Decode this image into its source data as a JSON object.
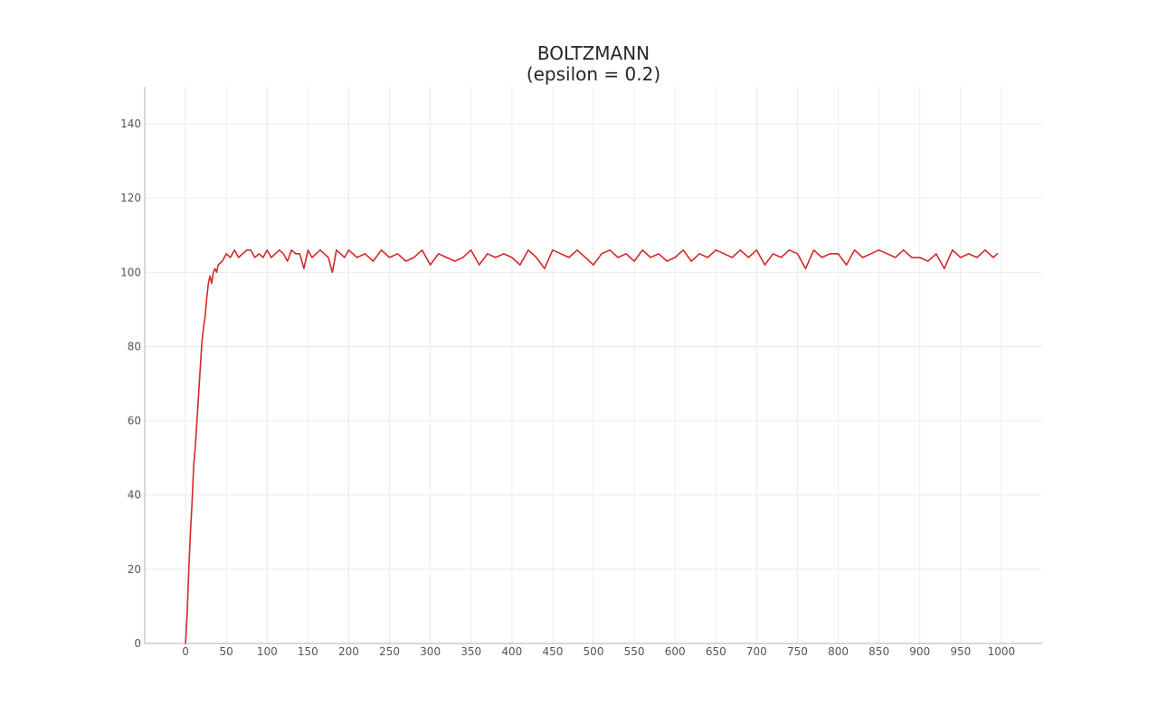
{
  "chart_data": {
    "type": "line",
    "title_lines": [
      "BOLTZMANN",
      "(epsilon = 0.2)"
    ],
    "xlabel": "",
    "ylabel": "",
    "xlim": [
      -50,
      1050
    ],
    "ylim": [
      0,
      150
    ],
    "x_ticks": [
      0,
      50,
      100,
      150,
      200,
      250,
      300,
      350,
      400,
      450,
      500,
      550,
      600,
      650,
      700,
      750,
      800,
      850,
      900,
      950,
      1000
    ],
    "y_ticks": [
      0,
      20,
      40,
      60,
      80,
      100,
      120,
      140
    ],
    "grid": true,
    "legend": "none",
    "series": [
      {
        "color": "#d62728",
        "x": [
          0,
          2,
          4,
          6,
          8,
          10,
          12,
          14,
          16,
          18,
          20,
          22,
          24,
          26,
          28,
          30,
          32,
          34,
          36,
          38,
          40,
          45,
          50,
          55,
          60,
          65,
          70,
          75,
          80,
          85,
          90,
          95,
          100,
          105,
          110,
          115,
          120,
          125,
          130,
          135,
          140,
          145,
          150,
          155,
          160,
          165,
          170,
          175,
          180,
          185,
          190,
          195,
          200,
          210,
          220,
          230,
          240,
          250,
          260,
          270,
          280,
          290,
          300,
          310,
          320,
          330,
          340,
          350,
          360,
          370,
          380,
          390,
          400,
          410,
          420,
          430,
          440,
          450,
          460,
          470,
          480,
          490,
          500,
          510,
          520,
          530,
          540,
          550,
          560,
          570,
          580,
          590,
          600,
          610,
          620,
          630,
          640,
          650,
          660,
          670,
          680,
          690,
          700,
          710,
          720,
          730,
          740,
          750,
          760,
          770,
          780,
          790,
          800,
          810,
          820,
          830,
          840,
          850,
          860,
          870,
          880,
          890,
          900,
          910,
          920,
          930,
          940,
          950,
          960,
          970,
          980,
          990,
          995
        ],
        "y": [
          0,
          8,
          20,
          30,
          38,
          48,
          53,
          60,
          67,
          74,
          81,
          85,
          88,
          93,
          97,
          99,
          97,
          100,
          101,
          100,
          102,
          103,
          105,
          104,
          106,
          104,
          105,
          106,
          106,
          104,
          105,
          104,
          106,
          104,
          105,
          106,
          105,
          103,
          106,
          105,
          105,
          101,
          106,
          104,
          105,
          106,
          105,
          104,
          100,
          106,
          105,
          104,
          106,
          104,
          105,
          103,
          106,
          104,
          105,
          103,
          104,
          106,
          102,
          105,
          104,
          103,
          104,
          106,
          102,
          105,
          104,
          105,
          104,
          102,
          106,
          104,
          101,
          106,
          105,
          104,
          106,
          104,
          102,
          105,
          106,
          104,
          105,
          103,
          106,
          104,
          105,
          103,
          104,
          106,
          103,
          105,
          104,
          106,
          105,
          104,
          106,
          104,
          106,
          102,
          105,
          104,
          106,
          105,
          101,
          106,
          104,
          105,
          105,
          102,
          106,
          104,
          105,
          106,
          105,
          104,
          106,
          104,
          104,
          103,
          105,
          101,
          106,
          104,
          105,
          104,
          106,
          104,
          105
        ]
      }
    ]
  }
}
